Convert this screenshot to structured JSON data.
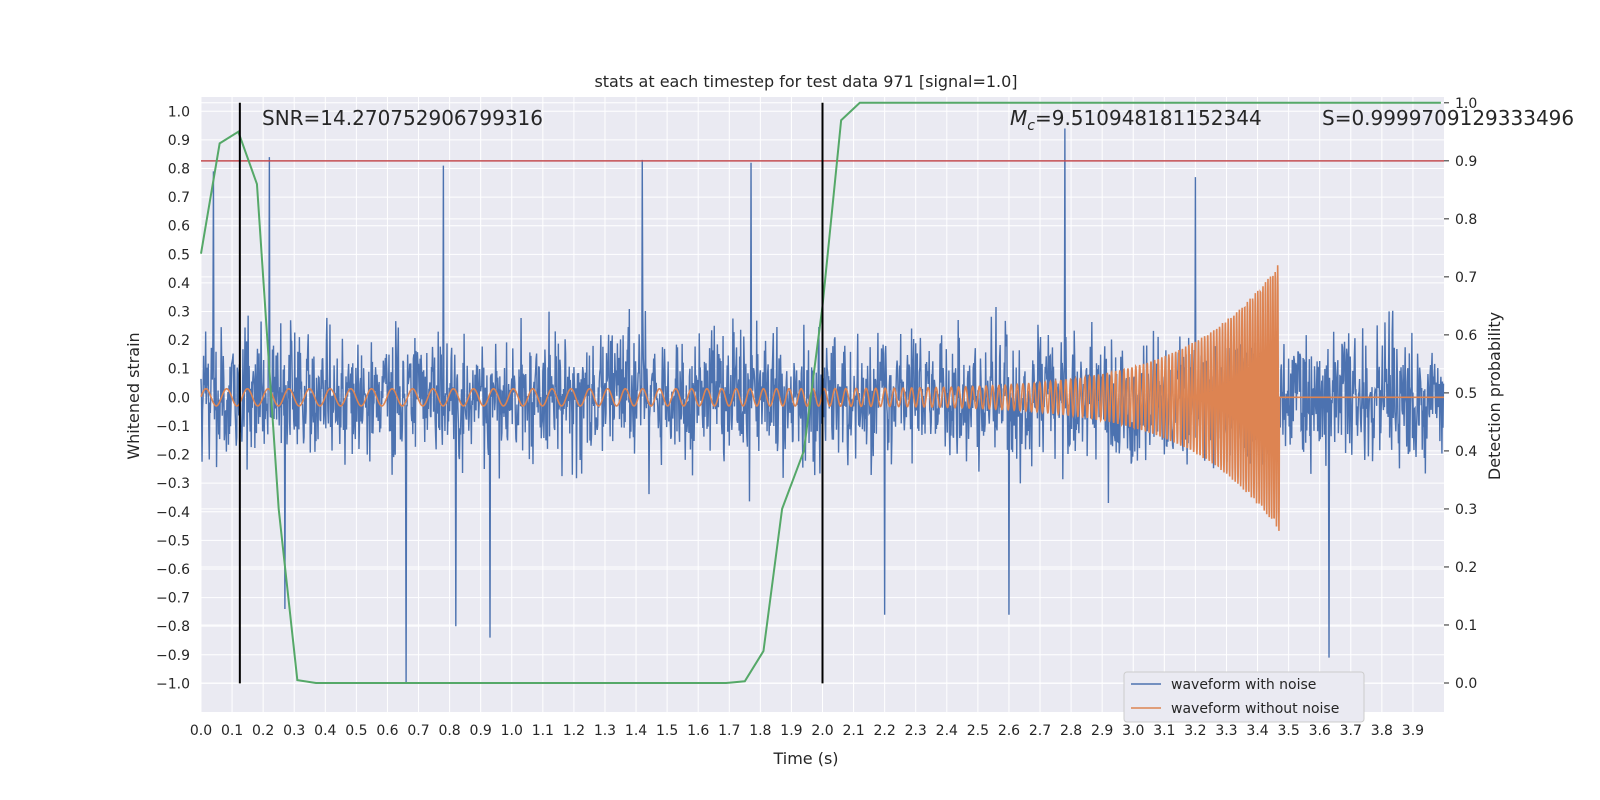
{
  "chart_data": {
    "type": "line",
    "title": "stats at each timestep for test data 971 [signal=1.0]",
    "xlabel": "Time (s)",
    "ylabel": "Whitened strain",
    "y2label": "Detection probability",
    "xlim": [
      0.0,
      4.0
    ],
    "ylim": [
      -1.1,
      1.05
    ],
    "y2lim": [
      -0.05,
      1.01
    ],
    "x_ticks": [
      0.0,
      0.1,
      0.2,
      0.3,
      0.4,
      0.5,
      0.6,
      0.7,
      0.8,
      0.9,
      1.0,
      1.1,
      1.2,
      1.3,
      1.4,
      1.5,
      1.6,
      1.7,
      1.8,
      1.9,
      2.0,
      2.1,
      2.2,
      2.3,
      2.4,
      2.5,
      2.6,
      2.7,
      2.8,
      2.9,
      3.0,
      3.1,
      3.2,
      3.3,
      3.4,
      3.5,
      3.6,
      3.7,
      3.8,
      3.9
    ],
    "y_ticks": [
      1.0,
      0.9,
      0.8,
      0.7,
      0.6,
      0.5,
      0.4,
      0.3,
      0.2,
      0.1,
      0.0,
      -0.1,
      -0.2,
      -0.3,
      -0.4,
      -0.5,
      -0.6,
      -0.7,
      -0.8,
      -0.9,
      -1.0
    ],
    "y2_ticks": [
      1.0,
      0.9,
      0.8,
      0.7,
      0.6,
      0.5,
      0.4,
      0.3,
      0.2,
      0.1,
      0.0
    ],
    "grid": true,
    "legend_position": "bottom-right",
    "annotations": {
      "snr": "SNR=14.270752906799316",
      "mc_symbol": "M",
      "mc_subscript": "c",
      "mc_value": "=9.510948181152344",
      "s_value": "S=0.9999709129333496"
    },
    "series": [
      {
        "name": "waveform with noise",
        "color": "#4c72b0",
        "description_values": "noisy whitened strain, amplitude roughly within ±0.5 with spikes up to 0.94 and down to -1.0"
      },
      {
        "name": "waveform without noise",
        "color": "#dd8452",
        "chirp": {
          "start_amplitude": 0.03,
          "peak_amplitude": 0.47,
          "merger_time": 3.47,
          "post_merger_value": 0.0,
          "start_frequency": 15,
          "end_frequency": 130
        }
      },
      {
        "name": "detection probability",
        "color": "#55a868",
        "x": [
          0.0,
          0.06,
          0.12,
          0.18,
          0.25,
          0.31,
          0.37,
          1.69,
          1.75,
          1.81,
          1.87,
          1.94,
          2.0,
          2.06,
          2.12,
          3.99
        ],
        "y": [
          0.74,
          0.93,
          0.95,
          0.86,
          0.3,
          0.005,
          0.0,
          0.0,
          0.003,
          0.055,
          0.3,
          0.4,
          0.65,
          0.97,
          1.0,
          1.0
        ]
      }
    ],
    "threshold": {
      "y2": 0.9,
      "color": "#c44e52"
    },
    "vlines": [
      {
        "x": 0.125,
        "color": "#000000"
      },
      {
        "x": 2.0,
        "color": "#000000"
      }
    ],
    "noisy_spikes": [
      {
        "x": 0.04,
        "y": 0.79
      },
      {
        "x": 0.22,
        "y": 0.84
      },
      {
        "x": 0.78,
        "y": 0.81
      },
      {
        "x": 1.42,
        "y": 0.83
      },
      {
        "x": 1.77,
        "y": 0.82
      },
      {
        "x": 2.78,
        "y": 0.94
      },
      {
        "x": 3.2,
        "y": 0.77
      },
      {
        "x": 0.66,
        "y": -1.0
      },
      {
        "x": 0.93,
        "y": -0.84
      },
      {
        "x": 0.82,
        "y": -0.8
      },
      {
        "x": 0.27,
        "y": -0.74
      },
      {
        "x": 2.2,
        "y": -0.76
      },
      {
        "x": 3.63,
        "y": -0.91
      },
      {
        "x": 2.6,
        "y": -0.76
      }
    ]
  }
}
